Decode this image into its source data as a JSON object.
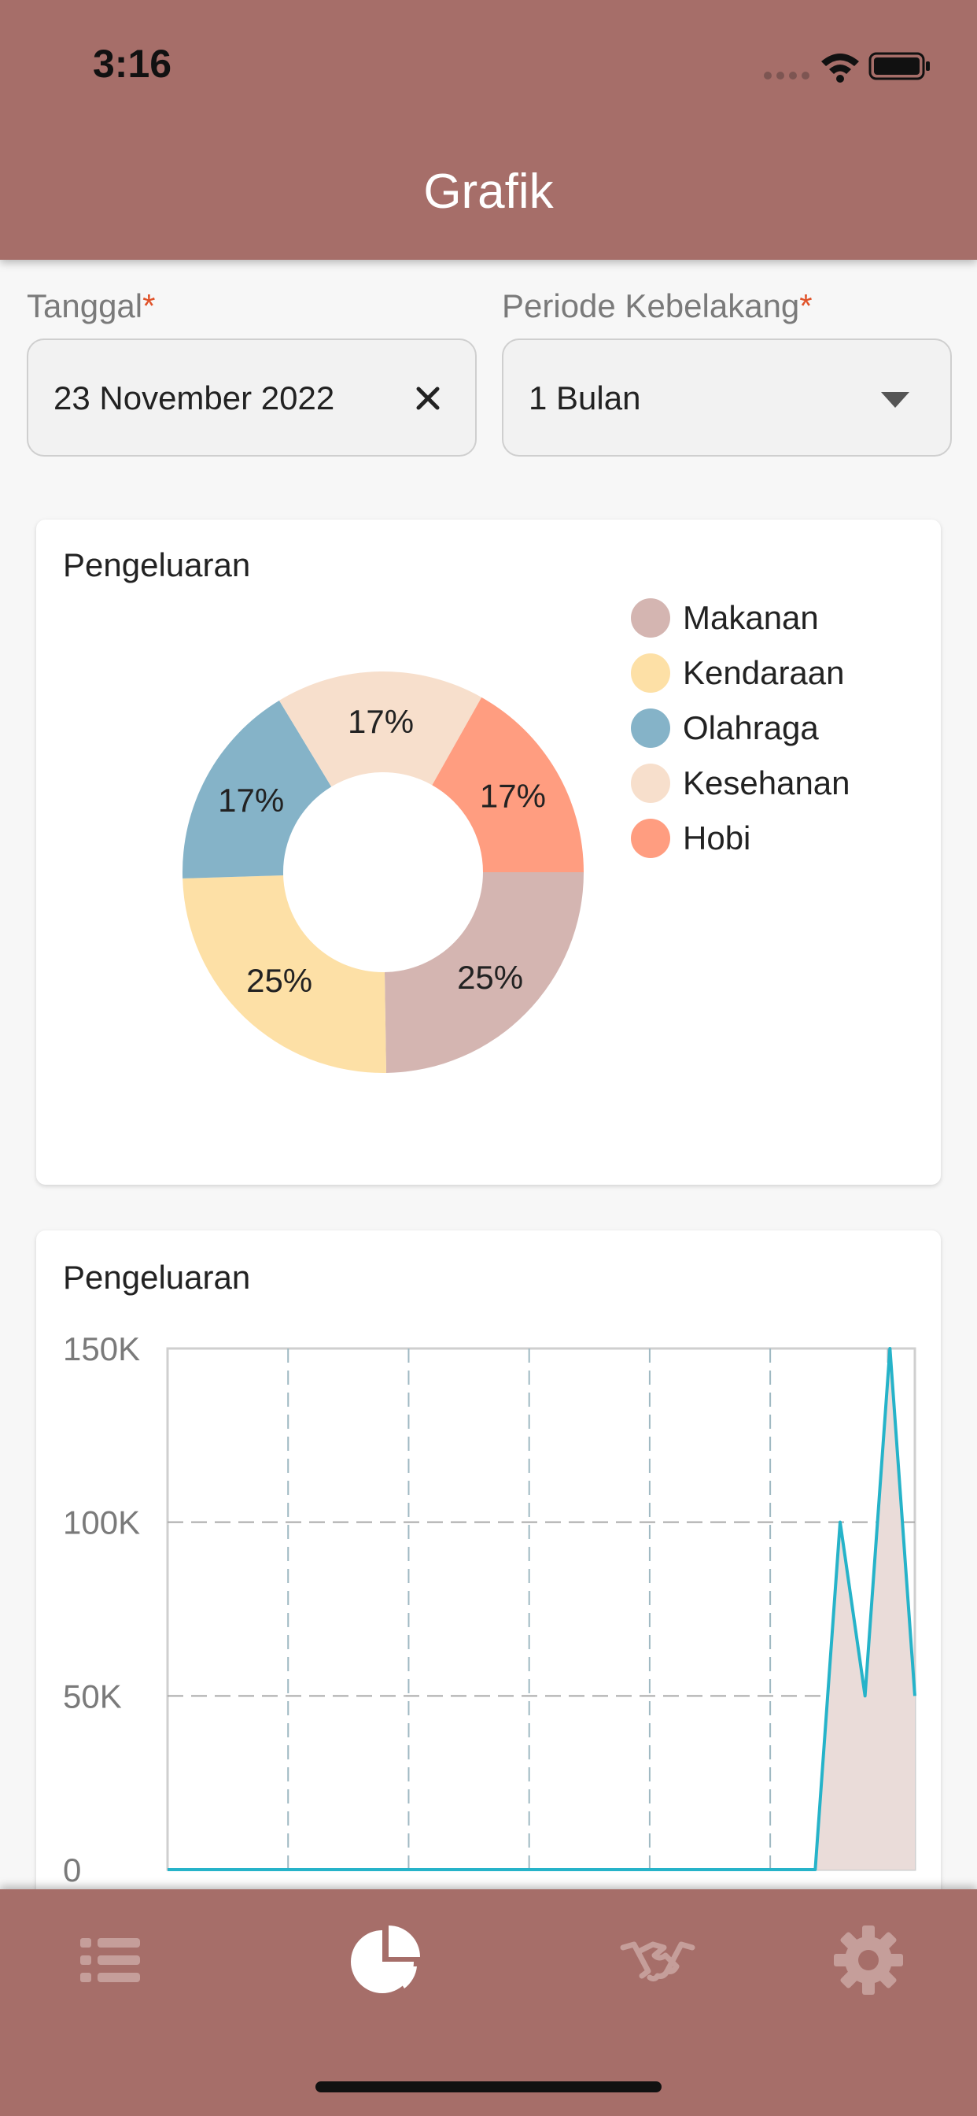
{
  "status_bar": {
    "time": "3:16"
  },
  "header": {
    "title": "Grafik"
  },
  "form": {
    "date": {
      "label": "Tanggal",
      "required_mark": "*",
      "value": "23 November 2022"
    },
    "period": {
      "label": "Periode Kebelakang",
      "required_mark": "*",
      "value": "1 Bulan"
    }
  },
  "pie_card": {
    "title": "Pengeluaran"
  },
  "line_card": {
    "title": "Pengeluaran"
  },
  "chart_data": [
    {
      "type": "pie",
      "title": "Pengeluaran",
      "donut": true,
      "legend": "right",
      "slices": [
        {
          "label": "Makanan",
          "value": 25,
          "display": "25%",
          "color": "#d4b5b1"
        },
        {
          "label": "Kendaraan",
          "value": 25,
          "display": "25%",
          "color": "#fde0a6"
        },
        {
          "label": "Olahraga",
          "value": 17,
          "display": "17%",
          "color": "#85b3c8"
        },
        {
          "label": "Kesehanan",
          "value": 17,
          "display": "17%",
          "color": "#f7dfcc"
        },
        {
          "label": "Hobi",
          "value": 17,
          "display": "17%",
          "color": "#ff9d80"
        }
      ]
    },
    {
      "type": "area",
      "title": "Pengeluaran",
      "ylim": [
        0,
        150000
      ],
      "yticks": [
        "0",
        "50K",
        "100K",
        "150K"
      ],
      "grid": true,
      "line_color": "#26b3c9",
      "fill_color": "#eadcd9",
      "values": [
        0,
        0,
        0,
        0,
        0,
        0,
        0,
        0,
        0,
        0,
        0,
        0,
        0,
        0,
        0,
        0,
        0,
        0,
        0,
        0,
        0,
        0,
        0,
        0,
        0,
        0,
        0,
        100000,
        50000,
        150000,
        50000
      ]
    }
  ]
}
